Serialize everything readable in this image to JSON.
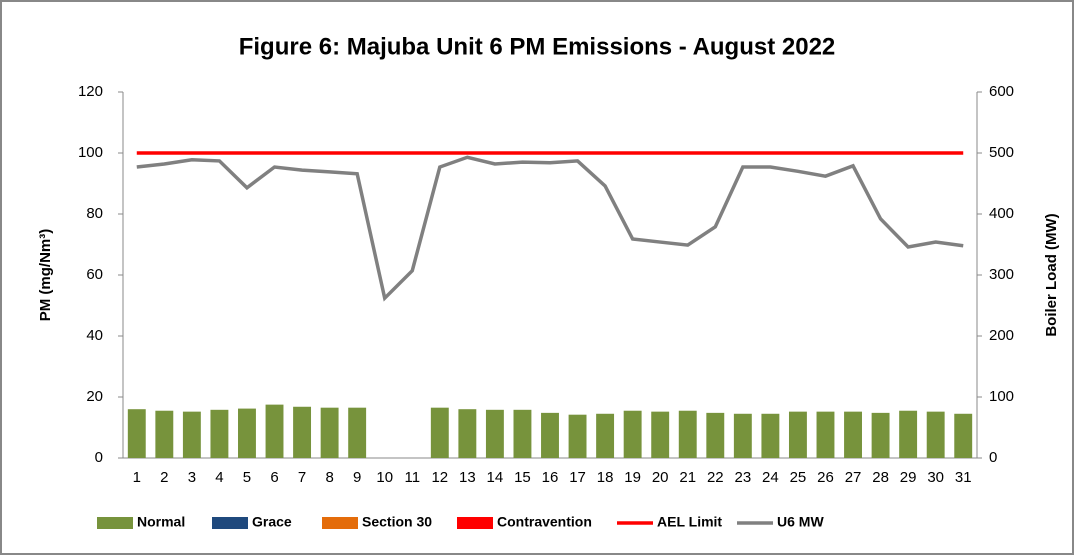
{
  "chart_data": {
    "type": "bar",
    "title": "Figure 6: Majuba Unit 6 PM Emissions -  August 2022",
    "y_label": "PM (mg/Nm³)",
    "y2_label": "Boiler Load (MW)",
    "categories": [
      "1",
      "2",
      "3",
      "4",
      "5",
      "6",
      "7",
      "8",
      "9",
      "10",
      "11",
      "12",
      "13",
      "14",
      "15",
      "16",
      "17",
      "18",
      "19",
      "20",
      "21",
      "22",
      "23",
      "24",
      "25",
      "26",
      "27",
      "28",
      "29",
      "30",
      "31"
    ],
    "series": [
      {
        "name": "Normal",
        "type": "bar",
        "color": "#77933c",
        "values": [
          16,
          15.5,
          15.2,
          15.8,
          16.2,
          17.5,
          16.8,
          16.5,
          16.5,
          null,
          null,
          16.5,
          16,
          15.8,
          15.8,
          14.8,
          14.2,
          14.5,
          15.5,
          15.2,
          15.5,
          14.8,
          14.5,
          14.5,
          15.2,
          15.2,
          15.2,
          14.8,
          15.5,
          15.2,
          14.5
        ]
      },
      {
        "name": "Grace",
        "type": "bar",
        "color": "#1f497d",
        "values": [
          null,
          null,
          null,
          null,
          null,
          null,
          null,
          null,
          null,
          null,
          null,
          null,
          null,
          null,
          null,
          null,
          null,
          null,
          null,
          null,
          null,
          null,
          null,
          null,
          null,
          null,
          null,
          null,
          null,
          null,
          null
        ]
      },
      {
        "name": "Section 30",
        "type": "bar",
        "color": "#e46c0a",
        "values": [
          null,
          null,
          null,
          null,
          null,
          null,
          null,
          null,
          null,
          null,
          null,
          null,
          null,
          null,
          null,
          null,
          null,
          null,
          null,
          null,
          null,
          null,
          null,
          null,
          null,
          null,
          null,
          null,
          null,
          null,
          null
        ]
      },
      {
        "name": "Contravention",
        "type": "bar",
        "color": "#ff0000",
        "values": [
          null,
          null,
          null,
          null,
          null,
          null,
          null,
          null,
          null,
          null,
          null,
          null,
          null,
          null,
          null,
          null,
          null,
          null,
          null,
          null,
          null,
          null,
          null,
          null,
          null,
          null,
          null,
          null,
          null,
          null,
          null
        ]
      },
      {
        "name": "AEL Limit",
        "type": "line",
        "color": "#ff0000",
        "values": [
          100,
          100,
          100,
          100,
          100,
          100,
          100,
          100,
          100,
          100,
          100,
          100,
          100,
          100,
          100,
          100,
          100,
          100,
          100,
          100,
          100,
          100,
          100,
          100,
          100,
          100,
          100,
          100,
          100,
          100,
          100
        ]
      },
      {
        "name": "U6 MW",
        "type": "line",
        "axis": "y2",
        "color": "#808080",
        "values": [
          477,
          482,
          489,
          487,
          443,
          477,
          472,
          469,
          466,
          262,
          307,
          477,
          493,
          482,
          485,
          484,
          487,
          446,
          359,
          354,
          349,
          379,
          477,
          477,
          470,
          462,
          479,
          392,
          346,
          354,
          348
        ]
      }
    ],
    "ylim": [
      0,
      120
    ],
    "yticks": [
      0,
      20,
      40,
      60,
      80,
      100,
      120
    ],
    "y2lim": [
      0,
      600
    ],
    "y2ticks": [
      0,
      100,
      200,
      300,
      400,
      500,
      600
    ],
    "grid": false,
    "legend": "bottom"
  }
}
